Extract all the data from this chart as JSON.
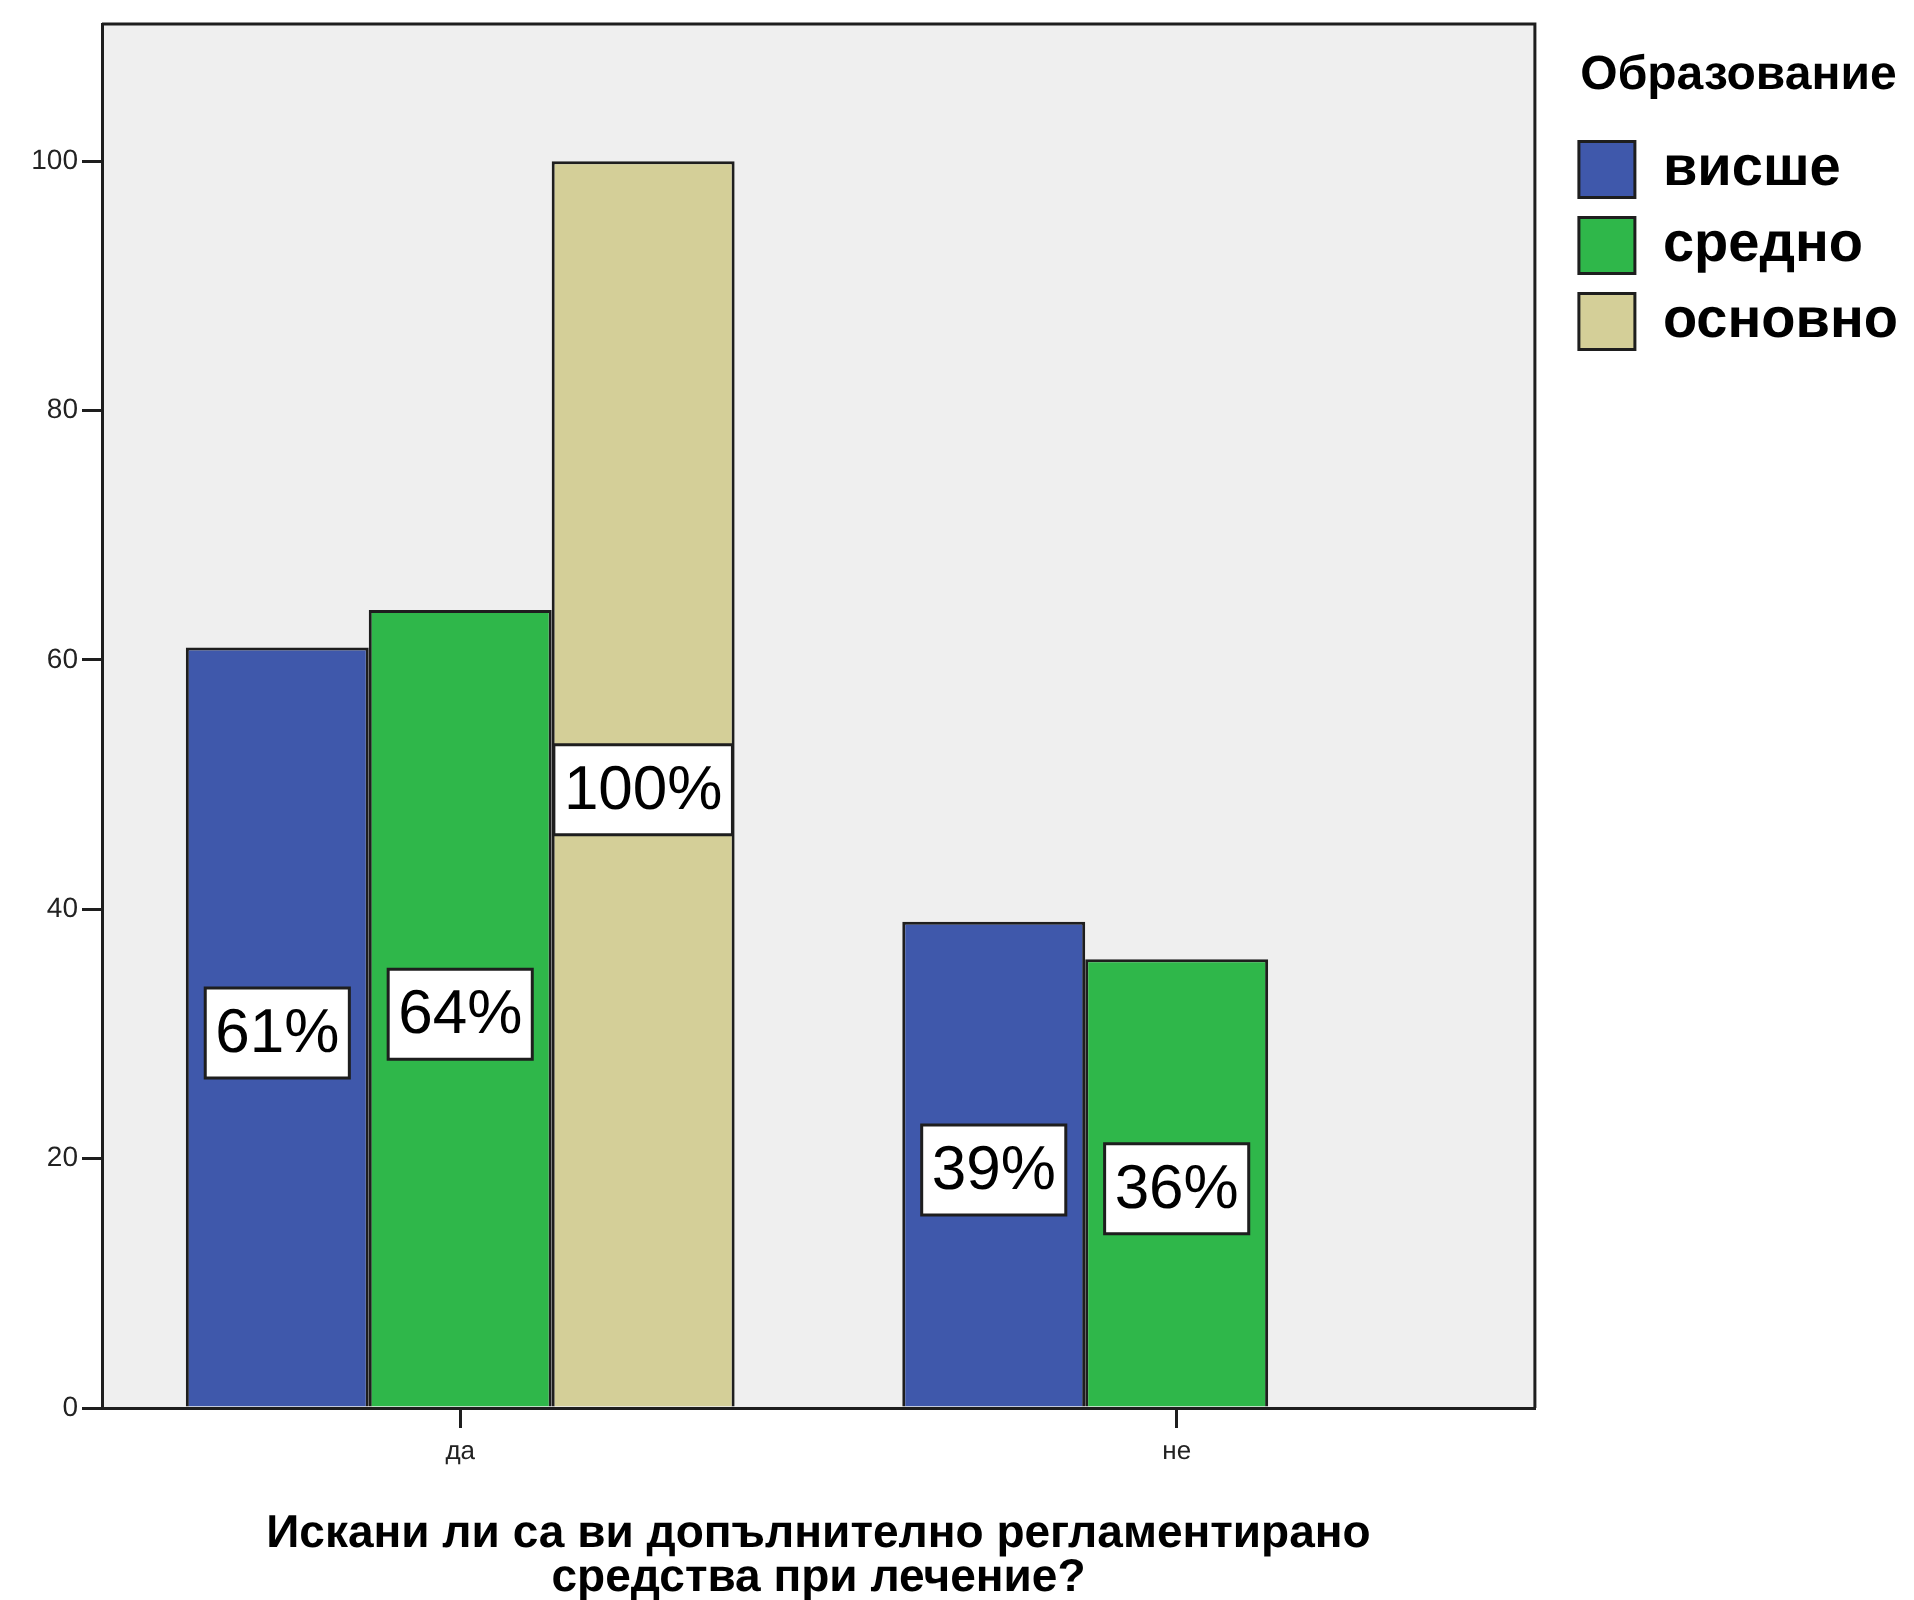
{
  "chart_data": {
    "type": "bar",
    "categories": [
      "да",
      "не"
    ],
    "series": [
      {
        "name": "висше",
        "color": "#3f58ab",
        "values": [
          61,
          39
        ],
        "value_labels": [
          "61%",
          "39%"
        ]
      },
      {
        "name": "средно",
        "color": "#2fb74a",
        "values": [
          64,
          36
        ],
        "value_labels": [
          "64%",
          "36%"
        ]
      },
      {
        "name": "основно",
        "color": "#d4cf98",
        "values": [
          100,
          null
        ],
        "value_labels": [
          "100%",
          null
        ]
      }
    ],
    "xlabel": "Искани ли са ви допълнително регламентирано средства при лечение?",
    "legend_title": "Образование",
    "legend": "top right",
    "grid": false,
    "ylim": [
      0,
      111
    ],
    "yticks": [
      0,
      20,
      40,
      60,
      80,
      100
    ]
  }
}
